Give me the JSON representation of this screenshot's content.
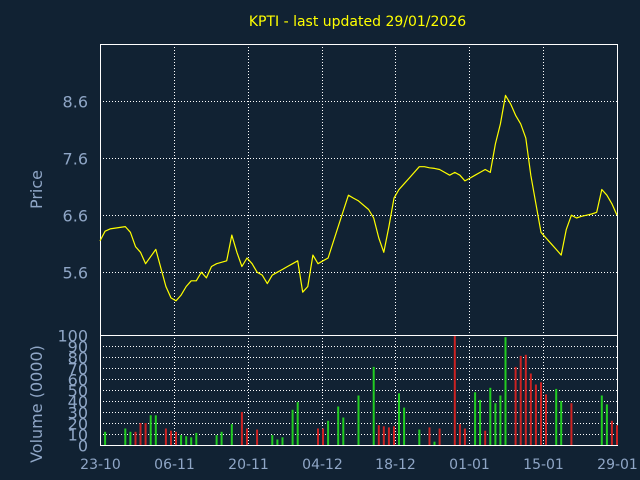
{
  "chart_data": [
    {
      "type": "line",
      "title": "KPTI - last updated 29/01/2026",
      "ylabel": "Price",
      "xlabel": "",
      "ylim": [
        4.5,
        9.6
      ],
      "yticks": [
        "5.6",
        "6.6",
        "7.6",
        "8.6"
      ],
      "xticks": [
        "23-10",
        "06-11",
        "20-11",
        "04-12",
        "18-12",
        "01-01",
        "15-01",
        "29-01"
      ],
      "grid": true,
      "x": [
        0,
        1,
        2,
        5,
        6,
        7,
        8,
        9,
        11,
        13,
        14,
        15,
        16,
        17,
        18,
        19,
        20,
        21,
        22,
        23,
        25,
        26,
        27,
        28,
        29,
        30,
        31,
        32,
        33,
        34,
        35,
        36,
        37,
        38,
        39,
        40,
        41,
        42,
        43,
        44,
        45,
        47,
        49,
        50,
        51,
        53,
        54,
        55,
        56,
        57,
        58,
        59,
        60,
        61,
        63,
        64,
        65,
        66,
        67,
        68,
        69,
        70,
        71,
        72,
        73,
        74,
        75,
        76,
        77,
        78,
        79,
        80,
        81,
        82,
        83,
        84,
        85,
        86,
        87,
        88,
        89,
        90,
        91,
        92,
        93,
        94,
        95,
        96,
        97,
        98,
        99,
        100,
        101,
        102
      ],
      "values": [
        6.15,
        6.32,
        6.36,
        6.4,
        6.3,
        6.05,
        5.95,
        5.75,
        6.0,
        5.35,
        5.15,
        5.1,
        5.2,
        5.35,
        5.45,
        5.45,
        5.6,
        5.5,
        5.7,
        5.75,
        5.8,
        6.25,
        5.95,
        5.7,
        5.85,
        5.75,
        5.6,
        5.55,
        5.4,
        5.55,
        5.6,
        5.65,
        5.7,
        5.75,
        5.8,
        5.25,
        5.35,
        5.9,
        5.75,
        5.8,
        5.85,
        6.4,
        6.95,
        6.9,
        6.85,
        6.7,
        6.55,
        6.2,
        5.95,
        6.4,
        6.9,
        7.05,
        7.15,
        7.25,
        7.45,
        7.45,
        7.43,
        7.42,
        7.4,
        7.35,
        7.3,
        7.35,
        7.3,
        7.2,
        7.25,
        7.3,
        7.35,
        7.4,
        7.35,
        7.85,
        8.2,
        8.7,
        8.55,
        8.35,
        8.2,
        7.95,
        7.3,
        6.8,
        6.3,
        6.2,
        6.1,
        6.0,
        5.9,
        6.35,
        6.6,
        6.55,
        6.58,
        6.6,
        6.62,
        6.65,
        7.05,
        6.95,
        6.8,
        6.6
      ],
      "color": "#ffff00",
      "background": "#112233",
      "grid_color": "#ffffff",
      "frame_color": "#ffffff",
      "label_color": "#8fa6c6",
      "title_color": "#ffff00"
    },
    {
      "type": "bar",
      "ylabel": "Volume (0000)",
      "ylim": [
        0,
        100
      ],
      "yticks": [
        "0",
        "10",
        "20",
        "30",
        "40",
        "50",
        "60",
        "70",
        "80",
        "90",
        "100"
      ],
      "series": [
        {
          "color": "#22cc22",
          "x": [
            1,
            5,
            6,
            10,
            11,
            16,
            17,
            18,
            19,
            23,
            24,
            26,
            34,
            35,
            36,
            38,
            39,
            45,
            47,
            48,
            51,
            54,
            59,
            60,
            63,
            66,
            74,
            75,
            77,
            78,
            79,
            80,
            90,
            91,
            99,
            100
          ],
          "values": [
            12,
            15,
            12,
            27,
            27,
            9,
            8,
            7,
            11,
            9,
            12,
            19,
            9,
            5,
            7,
            32,
            39,
            22,
            35,
            25,
            45,
            71,
            47,
            34,
            14,
            3,
            48,
            41,
            52,
            38,
            45,
            98,
            51,
            40,
            45,
            37
          ]
        },
        {
          "color": "#cc2222",
          "x": [
            7,
            8,
            9,
            13,
            14,
            15,
            28,
            29,
            31,
            43,
            44,
            55,
            56,
            57,
            58,
            65,
            67,
            70,
            71,
            72,
            76,
            82,
            83,
            84,
            85,
            86,
            87,
            88,
            93,
            101,
            102
          ],
          "values": [
            12,
            20,
            20,
            15,
            13,
            12,
            30,
            15,
            14,
            15,
            15,
            18,
            17,
            16,
            17,
            16,
            15,
            102,
            19,
            15,
            13,
            71,
            81,
            82,
            65,
            55,
            57,
            46,
            38,
            22,
            18
          ]
        }
      ]
    }
  ]
}
